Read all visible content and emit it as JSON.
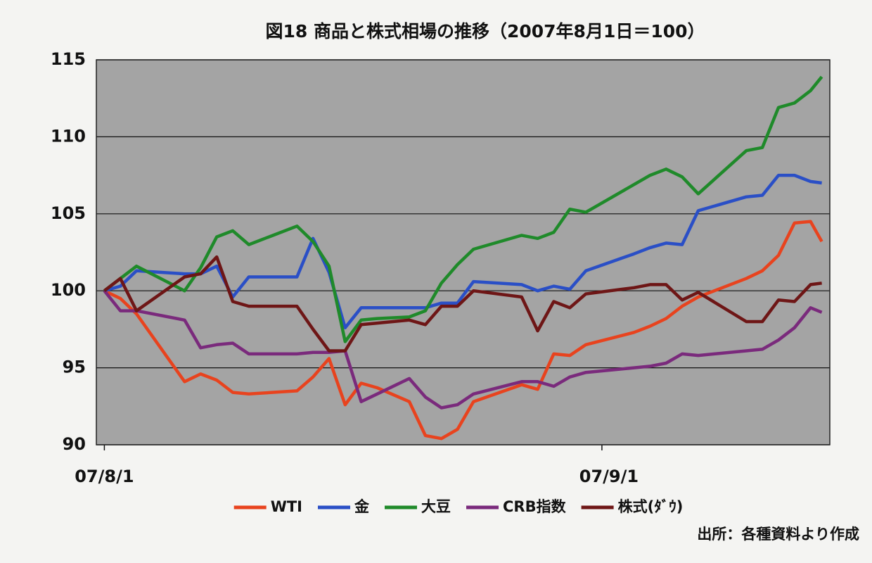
{
  "chart_data": {
    "type": "line",
    "title": "図18 商品と株式相場の推移（2007年8月1日＝100）",
    "source": "出所：各種資料より作成",
    "x": [
      0,
      1,
      2,
      5,
      6,
      7,
      8,
      9,
      12,
      13,
      14,
      15,
      16,
      17,
      19,
      20,
      21,
      22,
      23,
      26,
      27,
      28,
      29,
      30,
      33,
      34,
      35,
      36,
      37,
      40,
      41,
      42,
      43,
      44,
      44.7
    ],
    "xlim": [
      -0.5,
      45.2
    ],
    "xticks": [
      {
        "value": 0,
        "label": "07/8/1"
      },
      {
        "value": 31,
        "label": "07/9/1"
      }
    ],
    "ylim": [
      90,
      115
    ],
    "yticks": [
      90,
      95,
      100,
      105,
      110,
      115
    ],
    "grid": true,
    "series": [
      {
        "name": "WTI",
        "color": "#e8431e",
        "values": [
          100,
          99.5,
          98.5,
          94.1,
          94.6,
          94.2,
          93.4,
          93.3,
          93.5,
          94.4,
          95.6,
          92.6,
          94.0,
          93.7,
          92.8,
          90.6,
          90.4,
          91.0,
          92.8,
          93.9,
          93.6,
          95.9,
          95.8,
          96.5,
          97.3,
          97.7,
          98.2,
          99.0,
          99.6,
          100.8,
          101.3,
          102.3,
          104.4,
          104.5,
          103.2
        ]
      },
      {
        "name": "金",
        "color": "#2a4fc6",
        "values": [
          100,
          100.3,
          101.3,
          101.1,
          101.1,
          101.6,
          99.6,
          100.9,
          100.9,
          103.4,
          101.2,
          97.6,
          98.9,
          98.9,
          98.9,
          98.9,
          99.2,
          99.2,
          100.6,
          100.4,
          100.0,
          100.3,
          100.1,
          101.3,
          102.4,
          102.8,
          103.1,
          103.0,
          105.2,
          106.1,
          106.2,
          107.5,
          107.5,
          107.1,
          107.0
        ]
      },
      {
        "name": "大豆",
        "color": "#1f8a2a",
        "values": [
          100,
          100.8,
          101.6,
          100.0,
          101.5,
          103.5,
          103.9,
          103.0,
          104.2,
          103.2,
          101.6,
          96.7,
          98.1,
          98.2,
          98.3,
          98.7,
          100.5,
          101.7,
          102.7,
          103.6,
          103.4,
          103.8,
          105.3,
          105.1,
          106.9,
          107.5,
          107.9,
          107.4,
          106.3,
          109.1,
          109.3,
          111.9,
          112.2,
          113.0,
          113.9
        ]
      },
      {
        "name": "CRB指数",
        "color": "#7a2a7c",
        "values": [
          100,
          98.7,
          98.7,
          98.1,
          96.3,
          96.5,
          96.6,
          95.9,
          95.9,
          96.0,
          96.0,
          96.1,
          92.8,
          93.3,
          94.3,
          93.1,
          92.4,
          92.6,
          93.3,
          94.1,
          94.1,
          93.8,
          94.4,
          94.7,
          95.0,
          95.1,
          95.3,
          95.9,
          95.8,
          96.1,
          96.2,
          96.8,
          97.6,
          98.9,
          98.6
        ]
      },
      {
        "name": "株式(ﾀﾞｳ)",
        "color": "#6e1616",
        "values": [
          100,
          100.8,
          98.7,
          100.9,
          101.1,
          102.2,
          99.3,
          99.0,
          99.0,
          97.5,
          96.1,
          96.1,
          97.8,
          97.9,
          98.1,
          97.8,
          99.0,
          99.0,
          100.0,
          99.6,
          97.4,
          99.3,
          98.9,
          99.8,
          100.2,
          100.4,
          100.4,
          99.4,
          99.9,
          98.0,
          98.0,
          99.4,
          99.3,
          100.4,
          100.5
        ]
      }
    ]
  }
}
